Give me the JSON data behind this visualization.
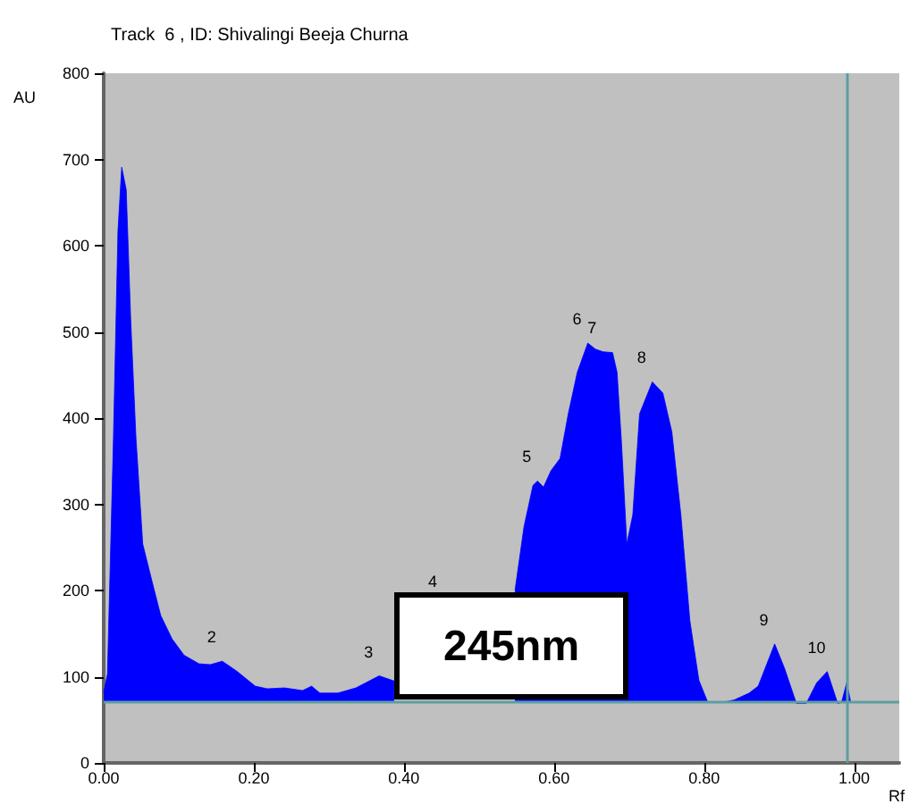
{
  "chart_data": {
    "type": "area",
    "title": "Track  6 , ID: Shivalingi Beeja Churna",
    "xlabel": "Rf",
    "ylabel": "AU",
    "x": [
      0,
      0.005,
      0.013,
      0.019,
      0.024,
      0.03,
      0.036,
      0.043,
      0.052,
      0.064,
      0.076,
      0.091,
      0.107,
      0.127,
      0.142,
      0.158,
      0.178,
      0.202,
      0.218,
      0.241,
      0.265,
      0.277,
      0.288,
      0.312,
      0.336,
      0.367,
      0.387,
      0.47,
      0.548,
      0.56,
      0.572,
      0.578,
      0.586,
      0.596,
      0.608,
      0.619,
      0.631,
      0.645,
      0.655,
      0.665,
      0.678,
      0.684,
      0.69,
      0.697,
      0.705,
      0.714,
      0.731,
      0.745,
      0.757,
      0.769,
      0.781,
      0.793,
      0.805,
      0.824,
      0.84,
      0.86,
      0.872,
      0.894,
      0.907,
      0.923,
      0.936,
      0.95,
      0.964,
      0.978,
      0.983,
      0.99,
      0.995
    ],
    "series": [
      {
        "color": "#0000ff",
        "values": [
          82,
          103,
          377,
          617,
          691,
          665,
          514,
          377,
          254,
          212,
          171,
          144,
          125,
          115,
          114,
          118,
          106,
          89,
          86,
          87,
          84,
          89,
          81,
          81,
          87,
          101,
          95,
          null,
          200,
          274,
          322,
          327,
          320,
          339,
          353,
          405,
          453,
          487,
          480,
          477,
          476,
          453,
          370,
          254,
          288,
          405,
          442,
          429,
          384,
          288,
          165,
          96,
          70,
          70,
          73,
          81,
          89,
          138,
          110,
          69,
          69,
          93,
          106,
          69,
          70,
          93,
          72
        ]
      }
    ],
    "xlim": [
      0,
      1.06
    ],
    "xticks": [
      {
        "value": 0,
        "label": "0.00"
      },
      {
        "value": 0.2,
        "label": "0.20"
      },
      {
        "value": 0.4,
        "label": "0.40"
      },
      {
        "value": 0.6,
        "label": "0.60"
      },
      {
        "value": 0.8,
        "label": "0.80"
      },
      {
        "value": 1,
        "label": "1.00"
      }
    ],
    "ylim": [
      0,
      800
    ],
    "yticks": [
      0,
      100,
      200,
      300,
      400,
      500,
      600,
      700,
      800
    ],
    "ref_lines": [
      {
        "axis": "y",
        "value": 70,
        "color": "#5f9ea0"
      },
      {
        "axis": "x",
        "value": 0.99,
        "color": "#5f9ea0"
      }
    ],
    "annotations": [
      "245nm",
      {
        "text": "2",
        "x": 0.158,
        "y": 118
      },
      {
        "text": "3",
        "x": 0.367,
        "y": 101
      },
      "4",
      {
        "text": "5",
        "x": 0.578,
        "y": 327
      },
      {
        "text": "6",
        "x": 0.645,
        "y": 487
      },
      {
        "text": "7",
        "x": 0.665,
        "y": 477
      },
      {
        "text": "8",
        "x": 0.731,
        "y": 442
      },
      {
        "text": "9",
        "x": 0.894,
        "y": 138
      },
      {
        "text": "10",
        "x": 0.964,
        "y": 106
      }
    ],
    "grid": false,
    "marker": "none"
  }
}
